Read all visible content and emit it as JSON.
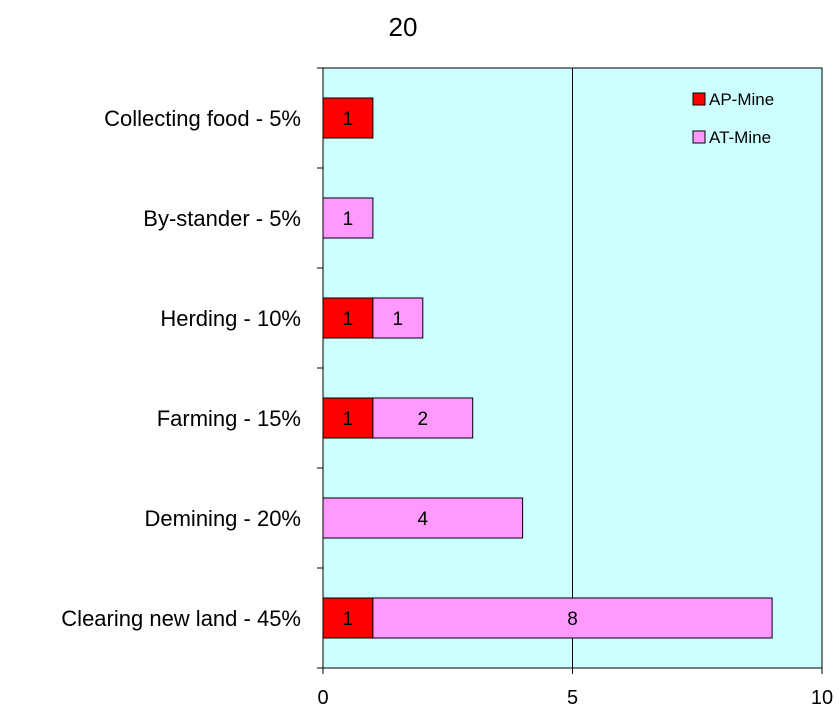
{
  "chart_data": {
    "type": "bar",
    "stacked": true,
    "orientation": "horizontal",
    "title": "20",
    "categories": [
      "Collecting food - 5%",
      "By-stander - 5%",
      "Herding - 10%",
      "Farming - 15%",
      "Demining - 20%",
      "Clearing new land - 45%"
    ],
    "series": [
      {
        "name": "AP-Mine",
        "color": "#ff0000",
        "values": [
          1,
          0,
          1,
          1,
          0,
          1
        ]
      },
      {
        "name": "AT-Mine",
        "color": "#ff99ff",
        "values": [
          0,
          1,
          1,
          2,
          4,
          8
        ]
      }
    ],
    "xlim": [
      0,
      10
    ],
    "xticks": [
      0,
      5,
      10
    ],
    "xlabel": "",
    "ylabel": "",
    "plot_background": "#ccffff",
    "grid": {
      "vertical_lines_at": [
        5
      ]
    },
    "legend": {
      "position": "top-right"
    }
  }
}
